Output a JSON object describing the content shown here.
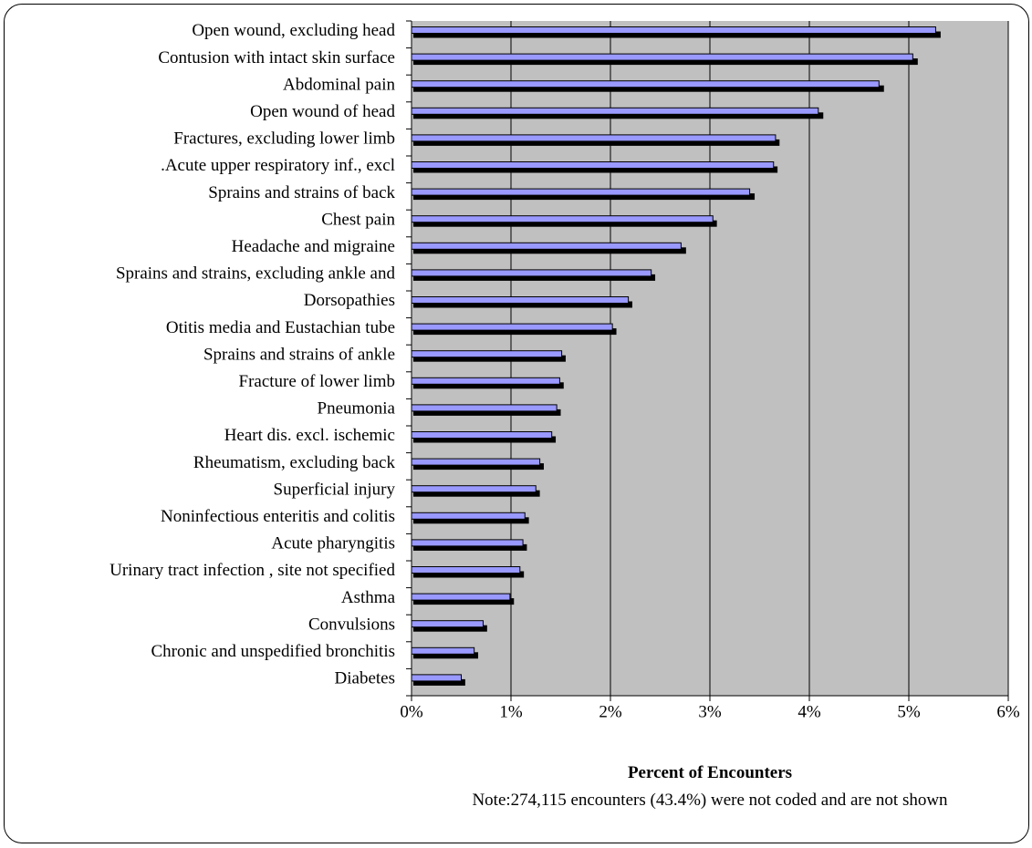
{
  "chart_data": {
    "type": "bar",
    "orientation": "horizontal",
    "categories": [
      "Open wound, excluding head",
      "Contusion with intact skin surface",
      "Abdominal pain",
      "Open wound of head",
      "Fractures, excluding lower limb",
      ".Acute upper respiratory inf., excl",
      "Sprains and strains of back",
      "Chest pain",
      "Headache and migraine",
      "Sprains and strains, excluding ankle and",
      "Dorsopathies",
      "Otitis media and Eustachian tube",
      "Sprains and strains of ankle",
      "Fracture of lower limb",
      "Pneumonia",
      "Heart dis. excl. ischemic",
      "Rheumatism, excluding back",
      "Superficial injury",
      "Noninfectious enteritis and colitis",
      "Acute pharyngitis",
      "Urinary tract infection , site not specified",
      "Asthma",
      "Convulsions",
      "Chronic and unspedified bronchitis",
      "Diabetes"
    ],
    "series": [
      {
        "values": [
          5.27,
          5.04,
          4.7,
          4.09,
          3.66,
          3.64,
          3.4,
          3.03,
          2.71,
          2.41,
          2.18,
          2.02,
          1.51,
          1.49,
          1.46,
          1.41,
          1.29,
          1.25,
          1.14,
          1.12,
          1.09,
          0.99,
          0.72,
          0.63,
          0.5
        ],
        "color": "#9999ff"
      },
      {
        "values": [
          5.32,
          5.09,
          4.75,
          4.14,
          3.7,
          3.68,
          3.45,
          3.07,
          2.76,
          2.45,
          2.22,
          2.06,
          1.55,
          1.53,
          1.5,
          1.45,
          1.33,
          1.29,
          1.18,
          1.16,
          1.13,
          1.03,
          0.76,
          0.67,
          0.54
        ],
        "color": "#000000"
      }
    ],
    "xlim": [
      0,
      6
    ],
    "xticks": [
      "0%",
      "1%",
      "2%",
      "3%",
      "4%",
      "5%",
      "6%"
    ],
    "xlabel": "Percent of Encounters",
    "ylabel": "",
    "grid": "vertical",
    "plot_background": "#c0c0c0",
    "legend": "none"
  },
  "note": "Note:274,115 encounters (43.4%) were not coded and are not shown"
}
